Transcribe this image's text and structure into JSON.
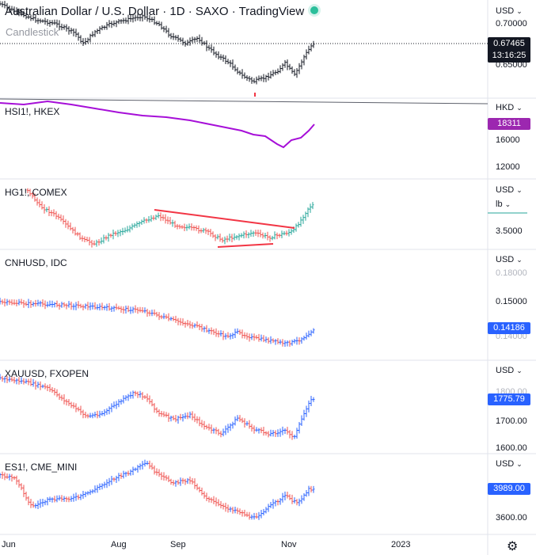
{
  "header": {
    "title": "Australian Dollar / U.S. Dollar · 1D · SAXO · TradingView",
    "subtitle": "Candlestick"
  },
  "panes": [
    {
      "label": "",
      "currency": "USD",
      "ticks": [
        "0.70000",
        "0.65000"
      ],
      "badge_value": "0.67465",
      "badge_timer": "13:16:25",
      "badge_color": "#131722",
      "series_color": "#131722"
    },
    {
      "label": "HSI1!, HKEX",
      "currency": "HKD",
      "ticks": [
        "16000",
        "12000"
      ],
      "badge_value": "18311",
      "badge_color": "#9c27b0",
      "series_color": "#a60fd8"
    },
    {
      "label": "HG1!, COMEX",
      "currency": "USD",
      "unit": "lb",
      "ticks": [
        "3.5000"
      ],
      "series_color": "#26a69a"
    },
    {
      "label": "CNHUSD, IDC",
      "currency": "USD",
      "ticks": [
        "0.18000",
        "0.15000",
        "0.14000"
      ],
      "badge_value": "0.14186",
      "badge_color": "#2962ff",
      "series_color": "#2962ff"
    },
    {
      "label": "XAUUSD, FXOPEN",
      "currency": "USD",
      "ticks": [
        "1800.00",
        "1700.00",
        "1600.00"
      ],
      "badge_value": "1775.79",
      "badge_color": "#2962ff",
      "series_color": "#2962ff"
    },
    {
      "label": "ES1!, CME_MINI",
      "currency": "USD",
      "ticks": [
        "3600.00"
      ],
      "badge_value": "3989.00",
      "badge_color": "#2962ff",
      "series_color": "#2962ff"
    }
  ],
  "time_axis": [
    "Jun",
    "Aug",
    "Sep",
    "Nov",
    "2023"
  ],
  "colors": {
    "up": "#2962ff",
    "down": "#ef5350",
    "trend": "#f23645",
    "grid": "#e0e3eb"
  },
  "icons": {
    "settings": "gear-icon",
    "live": "live-dot-icon"
  }
}
